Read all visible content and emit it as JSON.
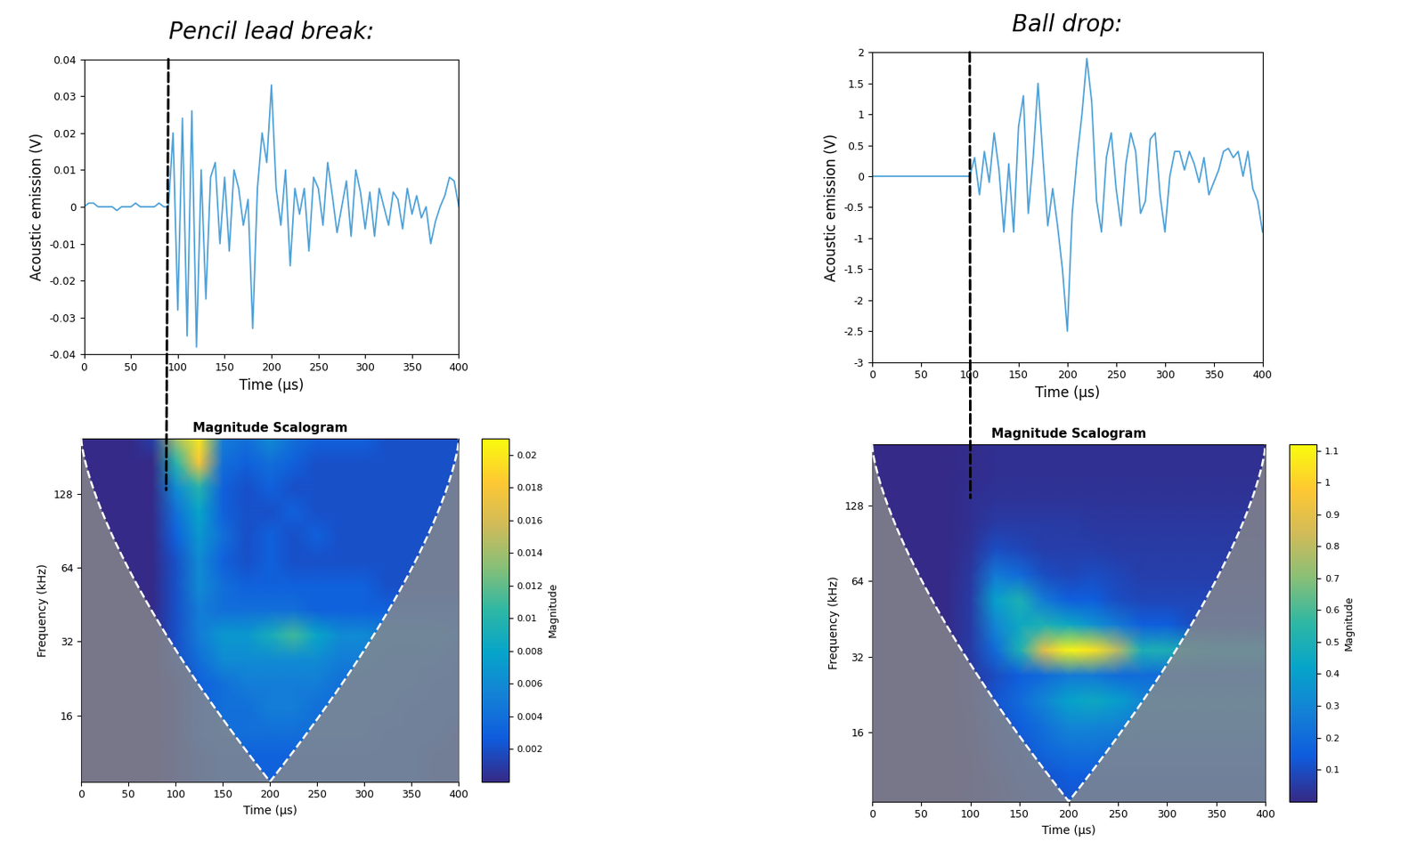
{
  "chart_data": [
    {
      "type": "line",
      "title": "Pencil lead break:",
      "xlabel": "Time (μs)",
      "ylabel": "Acoustic emission (V)",
      "color": "#4ea1d8",
      "marker_x": 90,
      "x": [
        0,
        5,
        10,
        15,
        20,
        25,
        30,
        35,
        40,
        45,
        50,
        55,
        60,
        65,
        70,
        75,
        80,
        85,
        90,
        95,
        100,
        105,
        110,
        115,
        120,
        125,
        130,
        135,
        140,
        145,
        150,
        155,
        160,
        165,
        170,
        175,
        180,
        185,
        190,
        195,
        200,
        205,
        210,
        215,
        220,
        225,
        230,
        235,
        240,
        245,
        250,
        255,
        260,
        265,
        270,
        275,
        280,
        285,
        290,
        295,
        300,
        305,
        310,
        315,
        320,
        325,
        330,
        335,
        340,
        345,
        350,
        355,
        360,
        365,
        370,
        375,
        380,
        385,
        390,
        395,
        400
      ],
      "values": [
        0,
        0.001,
        0.001,
        0,
        0,
        0,
        0,
        -0.001,
        0,
        0,
        0,
        0.001,
        0,
        0,
        0,
        0,
        0.001,
        0,
        0,
        0.02,
        -0.028,
        0.024,
        -0.035,
        0.026,
        -0.038,
        0.01,
        -0.025,
        0.008,
        0.012,
        -0.01,
        0.008,
        -0.012,
        0.01,
        0.005,
        -0.005,
        0.002,
        -0.033,
        0.005,
        0.02,
        0.012,
        0.033,
        0.005,
        -0.005,
        0.01,
        -0.016,
        0.005,
        -0.002,
        0.005,
        -0.012,
        0.008,
        0.005,
        -0.005,
        0.012,
        0.003,
        -0.007,
        0,
        0.007,
        -0.008,
        0.01,
        0.004,
        -0.006,
        0.004,
        -0.008,
        0.005,
        0,
        -0.005,
        0.004,
        0.002,
        -0.006,
        0.005,
        -0.002,
        0.003,
        -0.003,
        0,
        -0.01,
        -0.004,
        0,
        0.003,
        0.008,
        0.007,
        0
      ],
      "xlim": [
        0,
        400
      ],
      "xticks": [
        0,
        50,
        100,
        150,
        200,
        250,
        300,
        350,
        400
      ],
      "ylim": [
        -0.04,
        0.04
      ],
      "yticks": [
        -0.04,
        -0.03,
        -0.02,
        -0.01,
        0,
        0.01,
        0.02,
        0.03,
        0.04
      ]
    },
    {
      "type": "heatmap",
      "title": "Magnitude Scalogram",
      "xlabel": "Time (μs)",
      "ylabel": "Frequency (kHz)",
      "log": "y",
      "x": [
        0,
        25,
        50,
        75,
        100,
        125,
        150,
        175,
        200,
        225,
        250,
        275,
        300,
        325,
        350,
        375,
        400
      ],
      "y": [
        8.6,
        10.8,
        13.6,
        17,
        21.4,
        27,
        34,
        43,
        54,
        68,
        86,
        108,
        136,
        171,
        215
      ],
      "cells": [
        [
          0,
          0,
          0,
          0,
          0.001,
          0.002,
          0.003,
          0.003,
          0.003,
          0.003,
          0.003,
          0.003,
          0.003,
          0.003,
          0.003,
          0.002,
          0.002
        ],
        [
          0,
          0,
          0,
          0,
          0.001,
          0.002,
          0.003,
          0.003,
          0.003,
          0.003,
          0.003,
          0.003,
          0.003,
          0.003,
          0.003,
          0.002,
          0.002
        ],
        [
          0,
          0,
          0,
          0,
          0.001,
          0.003,
          0.004,
          0.004,
          0.004,
          0.004,
          0.004,
          0.004,
          0.004,
          0.003,
          0.003,
          0.003,
          0.002
        ],
        [
          0,
          0,
          0,
          0,
          0.001,
          0.003,
          0.004,
          0.004,
          0.005,
          0.005,
          0.004,
          0.004,
          0.004,
          0.004,
          0.003,
          0.003,
          0.003
        ],
        [
          0,
          0,
          0,
          0,
          0.001,
          0.003,
          0.004,
          0.005,
          0.005,
          0.005,
          0.005,
          0.004,
          0.004,
          0.004,
          0.004,
          0.003,
          0.003
        ],
        [
          0,
          0,
          0,
          0,
          0.002,
          0.004,
          0.006,
          0.006,
          0.006,
          0.006,
          0.006,
          0.005,
          0.005,
          0.004,
          0.004,
          0.004,
          0.003
        ],
        [
          0,
          0,
          0,
          0,
          0.002,
          0.005,
          0.007,
          0.007,
          0.009,
          0.011,
          0.008,
          0.006,
          0.006,
          0.005,
          0.005,
          0.005,
          0.004
        ],
        [
          0,
          0,
          0,
          0,
          0.002,
          0.005,
          0.004,
          0.004,
          0.004,
          0.004,
          0.003,
          0.003,
          0.003,
          0.003,
          0.003,
          0.003,
          0.003
        ],
        [
          0,
          0,
          0,
          0,
          0.002,
          0.006,
          0.004,
          0.003,
          0.003,
          0.003,
          0.003,
          0.003,
          0.003,
          0.002,
          0.002,
          0.002,
          0.002
        ],
        [
          0,
          0,
          0,
          0,
          0.002,
          0.006,
          0.003,
          0.002,
          0.003,
          0.002,
          0.002,
          0.002,
          0.002,
          0.002,
          0.002,
          0.002,
          0.002
        ],
        [
          0,
          0,
          0,
          0,
          0.003,
          0.007,
          0.004,
          0.002,
          0.003,
          0.002,
          0.003,
          0.002,
          0.002,
          0.002,
          0.002,
          0.002,
          0.002
        ],
        [
          0,
          0,
          0,
          0,
          0.004,
          0.008,
          0.003,
          0.002,
          0.002,
          0.003,
          0.002,
          0.002,
          0.002,
          0.002,
          0.002,
          0.002,
          0.002
        ],
        [
          0,
          0,
          0,
          0,
          0.006,
          0.01,
          0.003,
          0.002,
          0.003,
          0.002,
          0.002,
          0.002,
          0.002,
          0.002,
          0.002,
          0.002,
          0.002
        ],
        [
          0,
          0,
          0,
          0,
          0.01,
          0.018,
          0.004,
          0.003,
          0.004,
          0.003,
          0.002,
          0.002,
          0.002,
          0.002,
          0.002,
          0.002,
          0.002
        ],
        [
          0,
          0,
          0,
          0.001,
          0.014,
          0.02,
          0.005,
          0.004,
          0.006,
          0.004,
          0.003,
          0.003,
          0.003,
          0.002,
          0.002,
          0.002,
          0.002
        ]
      ],
      "xlim": [
        0,
        400
      ],
      "xticks": [
        0,
        50,
        100,
        150,
        200,
        250,
        300,
        350,
        400
      ],
      "ylim": [
        8.6,
        215
      ],
      "yticks": [
        16,
        32,
        64,
        128
      ],
      "colorbar": {
        "label": "Magnitude",
        "range": [
          0,
          0.021
        ],
        "ticks": [
          0.002,
          0.004,
          0.006,
          0.008,
          0.01,
          0.012,
          0.014,
          0.016,
          0.018,
          0.02
        ]
      }
    },
    {
      "type": "line",
      "title": "Ball drop:",
      "xlabel": "Time (μs)",
      "ylabel": "Acoustic emission (V)",
      "color": "#4ea1d8",
      "marker_x": 100,
      "x": [
        0,
        5,
        10,
        15,
        20,
        25,
        30,
        35,
        40,
        45,
        50,
        55,
        60,
        65,
        70,
        75,
        80,
        85,
        90,
        95,
        100,
        105,
        110,
        115,
        120,
        125,
        130,
        135,
        140,
        145,
        150,
        155,
        160,
        165,
        170,
        175,
        180,
        185,
        190,
        195,
        200,
        205,
        210,
        215,
        220,
        225,
        230,
        235,
        240,
        245,
        250,
        255,
        260,
        265,
        270,
        275,
        280,
        285,
        290,
        295,
        300,
        305,
        310,
        315,
        320,
        325,
        330,
        335,
        340,
        345,
        350,
        355,
        360,
        365,
        370,
        375,
        380,
        385,
        390,
        395,
        400
      ],
      "values": [
        0,
        0,
        0,
        0,
        0,
        0,
        0,
        0,
        0,
        0,
        0,
        0,
        0,
        0,
        0,
        0,
        0,
        0,
        0,
        0,
        0,
        0.3,
        -0.3,
        0.4,
        -0.1,
        0.7,
        0.1,
        -0.9,
        0.2,
        -0.9,
        0.8,
        1.3,
        -0.6,
        0.3,
        1.5,
        0.3,
        -0.8,
        -0.2,
        -0.8,
        -1.5,
        -2.5,
        -0.6,
        0.3,
        1.0,
        1.9,
        1.2,
        -0.4,
        -0.9,
        0.3,
        0.7,
        -0.2,
        -0.8,
        0.2,
        0.7,
        0.4,
        -0.6,
        -0.4,
        0.6,
        0.7,
        -0.3,
        -0.9,
        0,
        0.4,
        0.4,
        0.1,
        0.4,
        0.2,
        -0.1,
        0.3,
        -0.3,
        -0.1,
        0.1,
        0.4,
        0.45,
        0.3,
        0.4,
        0,
        0.4,
        -0.2,
        -0.4,
        -0.9
      ],
      "xlim": [
        0,
        400
      ],
      "xticks": [
        0,
        50,
        100,
        150,
        200,
        250,
        300,
        350,
        400
      ],
      "ylim": [
        -3,
        2
      ],
      "yticks": [
        -3,
        -2.5,
        -2,
        -1.5,
        -1,
        -0.5,
        0,
        0.5,
        1,
        1.5,
        2
      ]
    },
    {
      "type": "heatmap",
      "title": "Magnitude Scalogram",
      "xlabel": "Time (μs)",
      "ylabel": "Frequency (kHz)",
      "log": "y",
      "x": [
        0,
        25,
        50,
        75,
        100,
        125,
        150,
        175,
        200,
        225,
        250,
        275,
        300,
        325,
        350,
        375,
        400
      ],
      "y": [
        8.5,
        10.8,
        13.6,
        17,
        21.4,
        27,
        34,
        43,
        54,
        68,
        86,
        108,
        136,
        171,
        224
      ],
      "cells": [
        [
          0,
          0,
          0,
          0,
          0.02,
          0.05,
          0.08,
          0.1,
          0.12,
          0.12,
          0.12,
          0.12,
          0.12,
          0.12,
          0.12,
          0.12,
          0.12
        ],
        [
          0,
          0,
          0,
          0,
          0.02,
          0.06,
          0.1,
          0.12,
          0.15,
          0.15,
          0.15,
          0.15,
          0.15,
          0.15,
          0.15,
          0.15,
          0.15
        ],
        [
          0,
          0,
          0,
          0,
          0.03,
          0.08,
          0.12,
          0.18,
          0.22,
          0.22,
          0.2,
          0.2,
          0.2,
          0.2,
          0.2,
          0.2,
          0.2
        ],
        [
          0,
          0,
          0,
          0,
          0.03,
          0.1,
          0.15,
          0.22,
          0.3,
          0.3,
          0.28,
          0.25,
          0.25,
          0.25,
          0.25,
          0.25,
          0.25
        ],
        [
          0,
          0,
          0,
          0,
          0.04,
          0.12,
          0.2,
          0.3,
          0.42,
          0.45,
          0.4,
          0.3,
          0.3,
          0.3,
          0.3,
          0.3,
          0.3
        ],
        [
          0,
          0,
          0,
          0,
          0.04,
          0.1,
          0.15,
          0.2,
          0.25,
          0.25,
          0.2,
          0.2,
          0.2,
          0.2,
          0.2,
          0.2,
          0.2
        ],
        [
          0,
          0,
          0,
          0,
          0.05,
          0.2,
          0.5,
          0.9,
          1.1,
          1.05,
          0.8,
          0.5,
          0.5,
          0.45,
          0.4,
          0.4,
          0.4
        ],
        [
          0,
          0,
          0,
          0,
          0.05,
          0.3,
          0.45,
          0.5,
          0.45,
          0.35,
          0.25,
          0.15,
          0.15,
          0.1,
          0.1,
          0.1,
          0.1
        ],
        [
          0,
          0,
          0,
          0,
          0.05,
          0.4,
          0.5,
          0.25,
          0.15,
          0.15,
          0.1,
          0.08,
          0.08,
          0.08,
          0.08,
          0.08,
          0.08
        ],
        [
          0,
          0,
          0,
          0,
          0.04,
          0.25,
          0.2,
          0.1,
          0.08,
          0.1,
          0.08,
          0.06,
          0.06,
          0.06,
          0.06,
          0.06,
          0.06
        ],
        [
          0,
          0,
          0,
          0,
          0.03,
          0.1,
          0.08,
          0.06,
          0.06,
          0.06,
          0.05,
          0.05,
          0.05,
          0.05,
          0.05,
          0.05,
          0.05
        ],
        [
          0,
          0,
          0,
          0,
          0.02,
          0.05,
          0.05,
          0.05,
          0.05,
          0.04,
          0.04,
          0.04,
          0.04,
          0.04,
          0.04,
          0.04,
          0.04
        ],
        [
          0,
          0,
          0,
          0,
          0.02,
          0.03,
          0.03,
          0.03,
          0.03,
          0.03,
          0.03,
          0.03,
          0.03,
          0.03,
          0.03,
          0.03,
          0.03
        ],
        [
          0,
          0,
          0,
          0,
          0.01,
          0.02,
          0.02,
          0.02,
          0.02,
          0.02,
          0.02,
          0.02,
          0.02,
          0.02,
          0.02,
          0.02,
          0.02
        ],
        [
          0,
          0,
          0,
          0,
          0.01,
          0.02,
          0.02,
          0.02,
          0.02,
          0.02,
          0.02,
          0.02,
          0.02,
          0.02,
          0.02,
          0.02,
          0.02
        ]
      ],
      "xlim": [
        0,
        400
      ],
      "xticks": [
        0,
        50,
        100,
        150,
        200,
        250,
        300,
        350,
        400
      ],
      "ylim": [
        8.5,
        224
      ],
      "yticks": [
        16,
        32,
        64,
        128
      ],
      "colorbar": {
        "label": "Magnitude",
        "range": [
          0,
          1.12
        ],
        "ticks": [
          0.1,
          0.2,
          0.3,
          0.4,
          0.5,
          0.6,
          0.7,
          0.8,
          0.9,
          1,
          1.1
        ]
      }
    }
  ]
}
